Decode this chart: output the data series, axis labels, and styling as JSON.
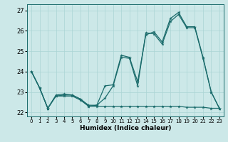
{
  "xlabel": "Humidex (Indice chaleur)",
  "bg_color": "#cce8e8",
  "line_color": "#1a6b6b",
  "grid_color": "#aad4d4",
  "xlim": [
    -0.5,
    23.5
  ],
  "ylim": [
    21.8,
    27.3
  ],
  "yticks": [
    22,
    23,
    24,
    25,
    26,
    27
  ],
  "xticks": [
    0,
    1,
    2,
    3,
    4,
    5,
    6,
    7,
    8,
    9,
    10,
    11,
    12,
    13,
    14,
    15,
    16,
    17,
    18,
    19,
    20,
    21,
    22,
    23
  ],
  "series1_x": [
    0,
    1,
    2,
    3,
    4,
    5,
    6,
    7,
    8,
    9,
    10,
    11,
    12,
    13,
    14,
    15,
    16,
    17,
    18,
    19,
    20,
    21,
    22,
    23
  ],
  "series1_y": [
    24.0,
    23.2,
    22.2,
    22.8,
    22.85,
    22.85,
    22.65,
    22.3,
    22.35,
    22.7,
    23.3,
    24.7,
    24.65,
    23.3,
    25.9,
    25.85,
    25.35,
    26.45,
    26.8,
    26.15,
    26.15,
    24.65,
    23.0,
    22.2
  ],
  "series2_x": [
    0,
    1,
    2,
    3,
    4,
    5,
    6,
    7,
    8,
    9,
    10,
    11,
    12,
    13,
    14,
    15,
    16,
    17,
    18,
    19,
    20,
    21,
    22,
    23
  ],
  "series2_y": [
    24.0,
    23.2,
    22.2,
    22.85,
    22.9,
    22.85,
    22.65,
    22.35,
    22.35,
    23.3,
    23.35,
    24.8,
    24.7,
    23.5,
    25.8,
    25.95,
    25.45,
    26.6,
    26.9,
    26.2,
    26.2,
    24.7,
    23.0,
    22.2
  ],
  "series3_x": [
    0,
    1,
    2,
    3,
    4,
    5,
    6,
    7,
    8,
    9,
    10,
    11,
    12,
    13,
    14,
    15,
    16,
    17,
    18,
    19,
    20,
    21,
    22,
    23
  ],
  "series3_y": [
    24.0,
    23.2,
    22.2,
    22.8,
    22.8,
    22.8,
    22.6,
    22.3,
    22.3,
    22.3,
    22.3,
    22.3,
    22.3,
    22.3,
    22.3,
    22.3,
    22.3,
    22.3,
    22.3,
    22.25,
    22.25,
    22.25,
    22.2,
    22.2
  ]
}
